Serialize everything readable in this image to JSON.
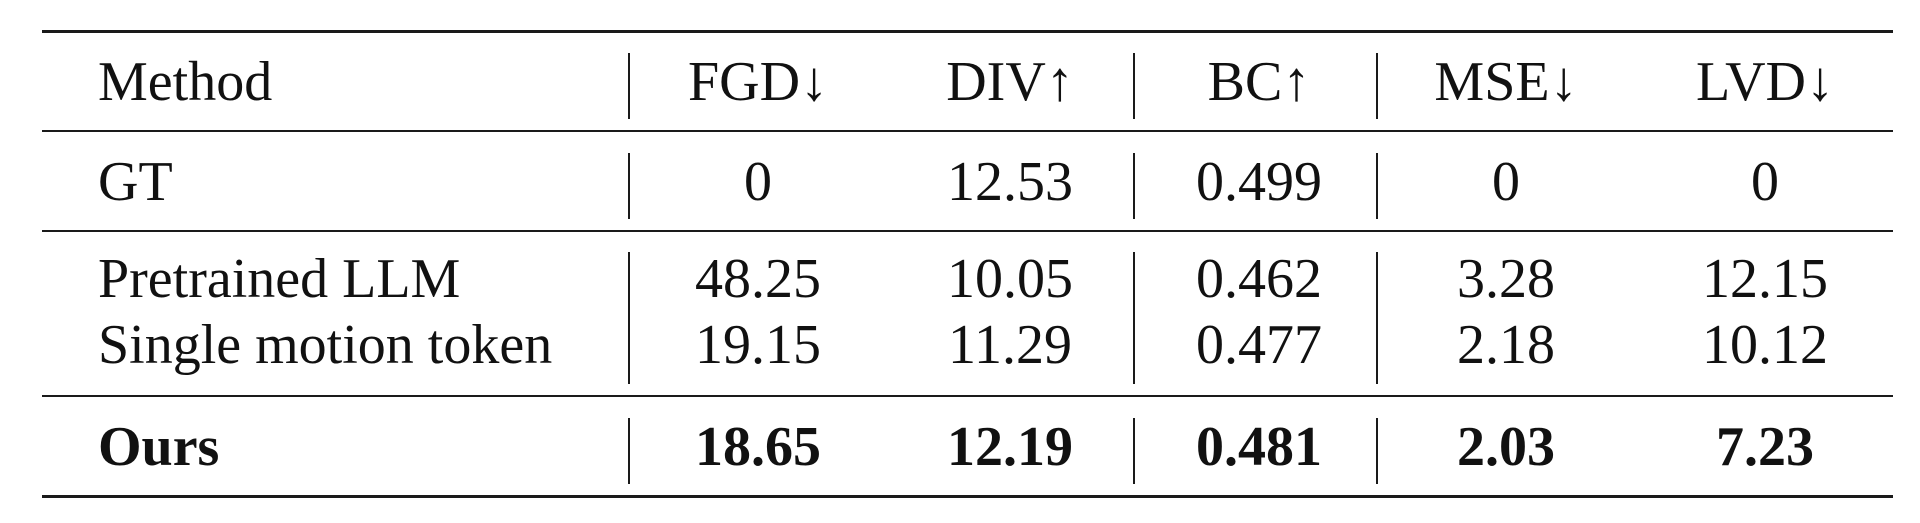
{
  "table": {
    "headers": [
      "Method",
      "FGD↓",
      "DIV↑",
      "BC↑",
      "MSE↓",
      "LVD↓"
    ],
    "rows": [
      {
        "method": "GT",
        "fgd": "0",
        "div": "12.53",
        "bc": "0.499",
        "mse": "0",
        "lvd": "0"
      },
      {
        "method": "Pretrained LLM",
        "fgd": "48.25",
        "div": "10.05",
        "bc": "0.462",
        "mse": "3.28",
        "lvd": "12.15"
      },
      {
        "method": "Single motion token",
        "fgd": "19.15",
        "div": "11.29",
        "bc": "0.477",
        "mse": "2.18",
        "lvd": "10.12"
      },
      {
        "method": "Ours",
        "fgd": "18.65",
        "div": "12.19",
        "bc": "0.481",
        "mse": "2.03",
        "lvd": "7.23"
      }
    ]
  }
}
